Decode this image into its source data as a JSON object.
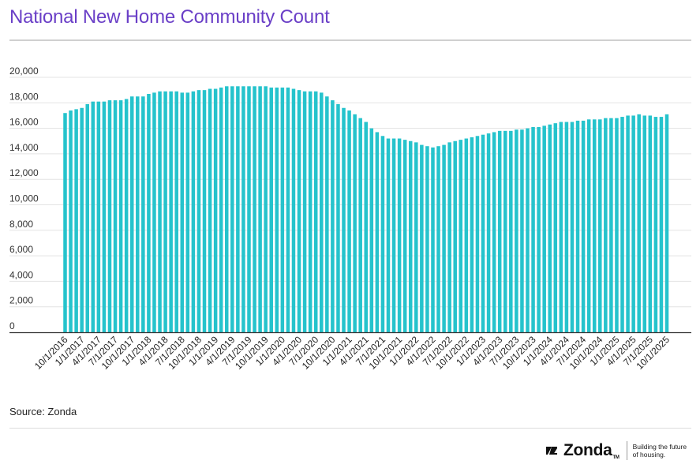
{
  "header": {
    "title": "National New Home Community Count"
  },
  "footer": {
    "source": "Source: Zonda",
    "brand": "Zonda",
    "trademark": "TM",
    "tagline_line1": "Building the future",
    "tagline_line2": "of housing."
  },
  "colors": {
    "bar": "#25c3cc",
    "title": "#6a3fc7",
    "grid": "#e3e3e3",
    "axis": "#333333"
  },
  "chart_data": {
    "type": "bar",
    "title": "National New Home Community Count",
    "xlabel": "",
    "ylabel": "",
    "ylim": [
      0,
      20000
    ],
    "yticks": [
      0,
      2000,
      4000,
      6000,
      8000,
      10000,
      12000,
      14000,
      16000,
      18000,
      20000
    ],
    "ytick_labels": [
      "0",
      "2,000",
      "4,000",
      "6,000",
      "8,000",
      "10,000",
      "12,000",
      "14,000",
      "16,000",
      "18,000",
      "20,000"
    ],
    "grid": true,
    "legend": "none",
    "xtick_labels": [
      "10/1/2016",
      "1/1/2017",
      "4/1/2017",
      "7/1/2017",
      "10/1/2017",
      "1/1/2018",
      "4/1/2018",
      "7/1/2018",
      "10/1/2018",
      "1/1/2019",
      "4/1/2019",
      "7/1/2019",
      "10/1/2019",
      "1/1/2020",
      "4/1/2020",
      "7/1/2020",
      "10/1/2020",
      "1/1/2021",
      "4/1/2021",
      "7/1/2021",
      "10/1/2021",
      "1/1/2022",
      "4/1/2022",
      "7/1/2022",
      "10/1/2022",
      "1/1/2023",
      "4/1/2023",
      "7/1/2023",
      "10/1/2023",
      "1/1/2024",
      "4/1/2024",
      "7/1/2024",
      "10/1/2024",
      "1/1/2025",
      "4/1/2025",
      "7/1/2025",
      "10/1/2025"
    ],
    "categories": [
      "10/1/2016",
      "11/1/2016",
      "12/1/2016",
      "1/1/2017",
      "2/1/2017",
      "3/1/2017",
      "4/1/2017",
      "5/1/2017",
      "6/1/2017",
      "7/1/2017",
      "8/1/2017",
      "9/1/2017",
      "10/1/2017",
      "11/1/2017",
      "12/1/2017",
      "1/1/2018",
      "2/1/2018",
      "3/1/2018",
      "4/1/2018",
      "5/1/2018",
      "6/1/2018",
      "7/1/2018",
      "8/1/2018",
      "9/1/2018",
      "10/1/2018",
      "11/1/2018",
      "12/1/2018",
      "1/1/2019",
      "2/1/2019",
      "3/1/2019",
      "4/1/2019",
      "5/1/2019",
      "6/1/2019",
      "7/1/2019",
      "8/1/2019",
      "9/1/2019",
      "10/1/2019",
      "11/1/2019",
      "12/1/2019",
      "1/1/2020",
      "2/1/2020",
      "3/1/2020",
      "4/1/2020",
      "5/1/2020",
      "6/1/2020",
      "7/1/2020",
      "8/1/2020",
      "9/1/2020",
      "10/1/2020",
      "11/1/2020",
      "12/1/2020",
      "1/1/2021",
      "2/1/2021",
      "3/1/2021",
      "4/1/2021",
      "5/1/2021",
      "6/1/2021",
      "7/1/2021",
      "8/1/2021",
      "9/1/2021",
      "10/1/2021",
      "11/1/2021",
      "12/1/2021",
      "1/1/2022",
      "2/1/2022",
      "3/1/2022",
      "4/1/2022",
      "5/1/2022",
      "6/1/2022",
      "7/1/2022",
      "8/1/2022",
      "9/1/2022",
      "10/1/2022",
      "11/1/2022",
      "12/1/2022",
      "1/1/2023",
      "2/1/2023",
      "3/1/2023",
      "4/1/2023",
      "5/1/2023",
      "6/1/2023",
      "7/1/2023",
      "8/1/2023",
      "9/1/2023",
      "10/1/2023",
      "11/1/2023",
      "12/1/2023",
      "1/1/2024",
      "2/1/2024",
      "3/1/2024",
      "4/1/2024",
      "5/1/2024",
      "6/1/2024",
      "7/1/2024",
      "8/1/2024",
      "9/1/2024",
      "10/1/2024",
      "11/1/2024",
      "12/1/2024",
      "1/1/2025",
      "2/1/2025",
      "3/1/2025",
      "4/1/2025",
      "5/1/2025",
      "6/1/2025",
      "7/1/2025",
      "8/1/2025",
      "9/1/2025",
      "10/1/2025"
    ],
    "values": [
      17200,
      17400,
      17500,
      17600,
      17900,
      18100,
      18100,
      18100,
      18200,
      18200,
      18200,
      18300,
      18500,
      18500,
      18500,
      18700,
      18800,
      18900,
      18900,
      18900,
      18900,
      18800,
      18800,
      18900,
      19000,
      19000,
      19100,
      19100,
      19200,
      19300,
      19300,
      19300,
      19300,
      19300,
      19300,
      19300,
      19300,
      19200,
      19200,
      19200,
      19200,
      19100,
      19000,
      18900,
      18900,
      18900,
      18800,
      18500,
      18200,
      17900,
      17600,
      17400,
      17100,
      16800,
      16500,
      16000,
      15700,
      15400,
      15200,
      15200,
      15200,
      15100,
      15000,
      14900,
      14700,
      14600,
      14500,
      14600,
      14700,
      14900,
      15000,
      15100,
      15200,
      15300,
      15400,
      15500,
      15600,
      15700,
      15800,
      15800,
      15800,
      15900,
      15900,
      16000,
      16100,
      16100,
      16200,
      16300,
      16400,
      16500,
      16500,
      16500,
      16600,
      16600,
      16700,
      16700,
      16700,
      16800,
      16800,
      16800,
      16900,
      17000,
      17000,
      17100,
      17000,
      17000,
      16900,
      16900,
      17100
    ]
  }
}
